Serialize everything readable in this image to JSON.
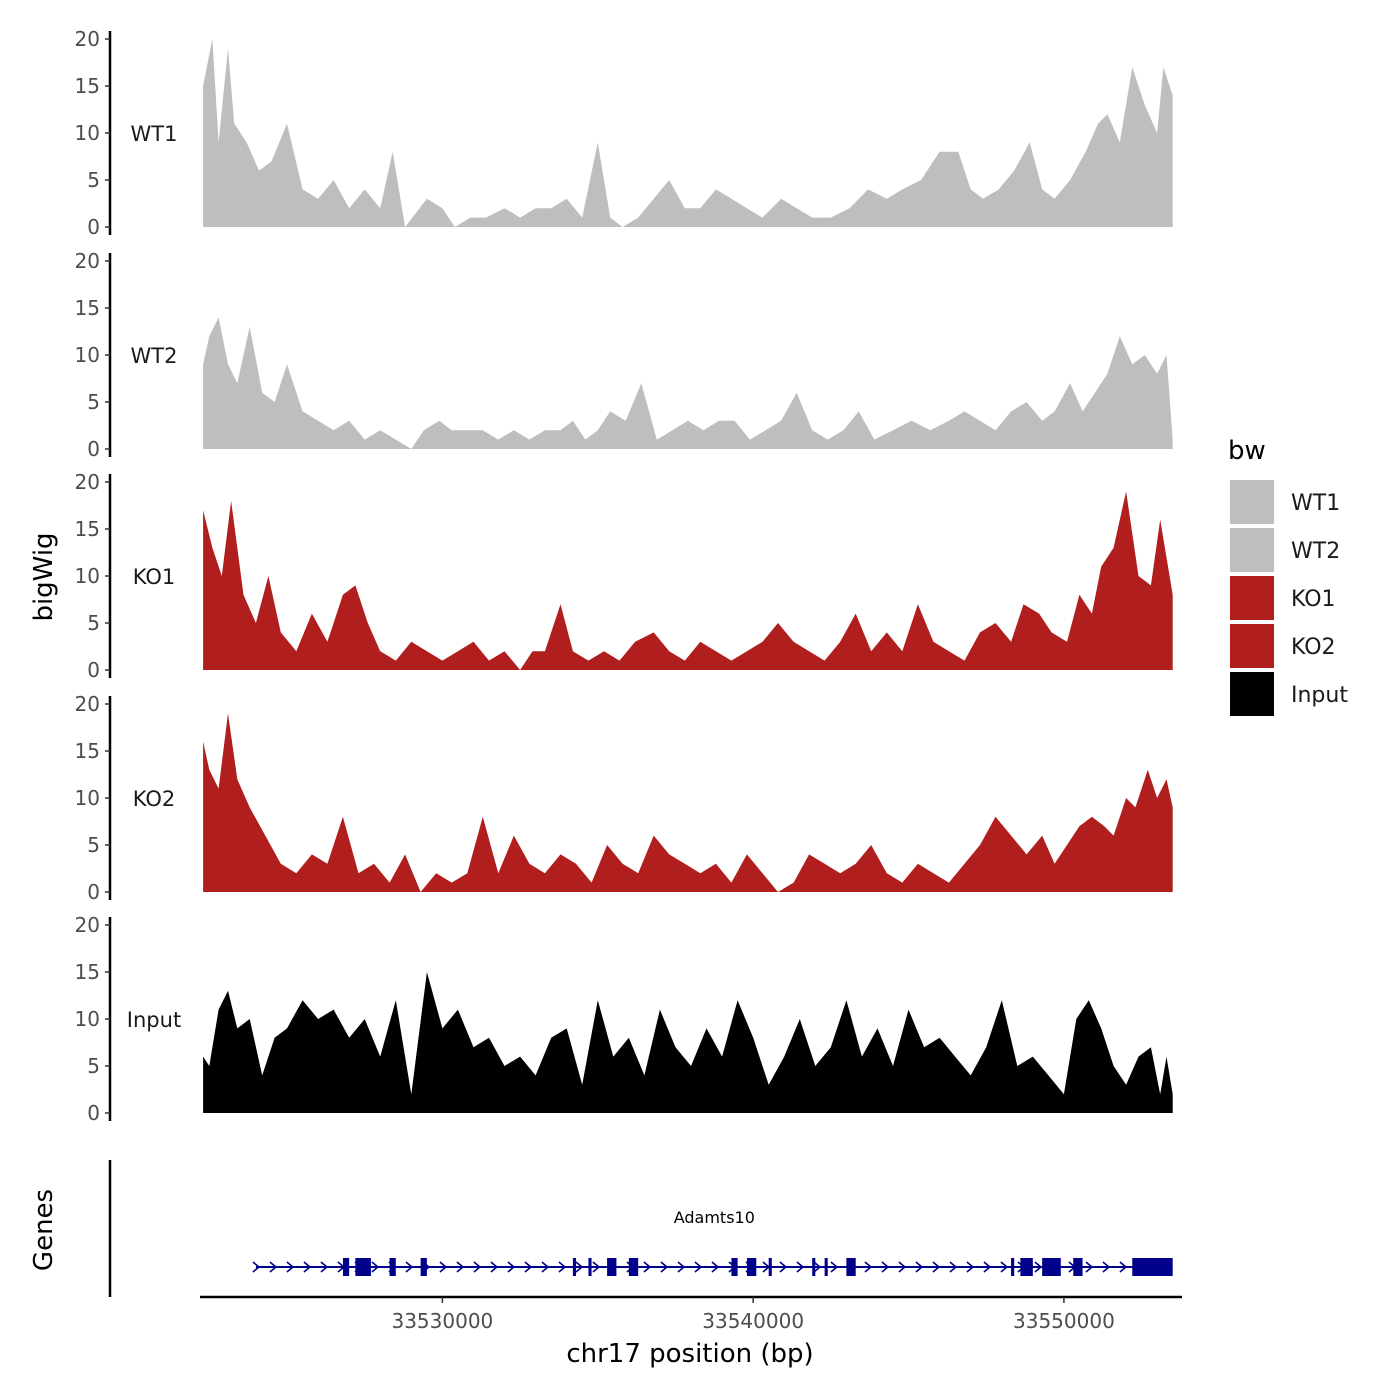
{
  "chart_data": {
    "type": "area",
    "x_units": "bp",
    "chromosome": "chr17",
    "xlabel": "chr17 position (bp)",
    "xlim": [
      33522200,
      33553800
    ],
    "xticks": [
      33530000,
      33540000,
      33550000
    ],
    "xtick_labels": [
      "33530000",
      "33540000",
      "33550000"
    ],
    "ylabel": "bigWig",
    "ylim": [
      0,
      20
    ],
    "yticks": [
      0,
      5,
      10,
      15,
      20
    ],
    "ytick_labels": [
      "0",
      "5",
      "10",
      "15",
      "20"
    ],
    "legend": {
      "title": "bw",
      "position": "right"
    },
    "series": [
      {
        "name": "WT1",
        "color": "#bebebe",
        "x": [
          33522300,
          33522600,
          33522800,
          33523100,
          33523300,
          33523700,
          33524100,
          33524500,
          33525000,
          33525500,
          33526000,
          33526500,
          33527000,
          33527500,
          33528000,
          33528400,
          33528800,
          33529500,
          33530000,
          33530400,
          33530900,
          33531400,
          33532000,
          33532500,
          33533000,
          33533500,
          33534000,
          33534500,
          33535000,
          33535400,
          33535800,
          33536300,
          33536800,
          33537300,
          33537800,
          33538300,
          33538800,
          33539300,
          33539800,
          33540300,
          33540900,
          33541400,
          33541900,
          33542500,
          33543100,
          33543700,
          33544300,
          33544800,
          33545400,
          33546000,
          33546600,
          33547000,
          33547400,
          33547900,
          33548400,
          33548900,
          33549300,
          33549700,
          33550200,
          33550700,
          33551100,
          33551400,
          33551800,
          33552200,
          33552600,
          33553000,
          33553200,
          33553500
        ],
        "values": [
          15,
          20,
          9,
          19,
          11,
          9,
          6,
          7,
          11,
          4,
          3,
          5,
          2,
          4,
          2,
          8,
          0,
          3,
          2,
          0,
          1,
          1,
          2,
          1,
          2,
          2,
          3,
          1,
          9,
          1,
          0,
          1,
          3,
          5,
          2,
          2,
          4,
          3,
          2,
          1,
          3,
          2,
          1,
          1,
          2,
          4,
          3,
          4,
          5,
          8,
          8,
          4,
          3,
          4,
          6,
          9,
          4,
          3,
          5,
          8,
          11,
          12,
          9,
          17,
          13,
          10,
          17,
          14
        ]
      },
      {
        "name": "WT2",
        "color": "#bebebe",
        "x": [
          33522300,
          33522500,
          33522800,
          33523100,
          33523400,
          33523800,
          33524200,
          33524600,
          33525000,
          33525500,
          33526000,
          33526500,
          33527000,
          33527500,
          33528000,
          33528500,
          33529000,
          33529400,
          33529900,
          33530300,
          33530800,
          33531300,
          33531800,
          33532300,
          33532800,
          33533300,
          33533800,
          33534200,
          33534600,
          33535000,
          33535400,
          33535900,
          33536400,
          33536900,
          33537400,
          33537900,
          33538400,
          33538900,
          33539400,
          33539900,
          33540400,
          33540900,
          33541400,
          33541900,
          33542400,
          33542900,
          33543400,
          33543900,
          33544500,
          33545100,
          33545700,
          33546300,
          33546800,
          33547300,
          33547800,
          33548300,
          33548800,
          33549300,
          33549700,
          33550200,
          33550600,
          33551000,
          33551400,
          33551800,
          33552200,
          33552600,
          33553000,
          33553300,
          33553500
        ],
        "values": [
          9,
          12,
          14,
          9,
          7,
          13,
          6,
          5,
          9,
          4,
          3,
          2,
          3,
          1,
          2,
          1,
          0,
          2,
          3,
          2,
          2,
          2,
          1,
          2,
          1,
          2,
          2,
          3,
          1,
          2,
          4,
          3,
          7,
          1,
          2,
          3,
          2,
          3,
          3,
          1,
          2,
          3,
          6,
          2,
          1,
          2,
          4,
          1,
          2,
          3,
          2,
          3,
          4,
          3,
          2,
          4,
          5,
          3,
          4,
          7,
          4,
          6,
          8,
          12,
          9,
          10,
          8,
          10,
          1
        ]
      },
      {
        "name": "KO1",
        "color": "#b11e1e",
        "x": [
          33522300,
          33522600,
          33522900,
          33523200,
          33523600,
          33524000,
          33524400,
          33524800,
          33525300,
          33525800,
          33526300,
          33526800,
          33527200,
          33527600,
          33528000,
          33528500,
          33529000,
          33529500,
          33530000,
          33530500,
          33531000,
          33531500,
          33532000,
          33532500,
          33532900,
          33533300,
          33533800,
          33534200,
          33534700,
          33535200,
          33535700,
          33536200,
          33536800,
          33537300,
          33537800,
          33538300,
          33538800,
          33539300,
          33539800,
          33540300,
          33540800,
          33541300,
          33541800,
          33542300,
          33542800,
          33543300,
          33543800,
          33544300,
          33544800,
          33545300,
          33545800,
          33546300,
          33546800,
          33547300,
          33547800,
          33548300,
          33548700,
          33549200,
          33549600,
          33550100,
          33550500,
          33550900,
          33551200,
          33551600,
          33552000,
          33552400,
          33552800,
          33553100,
          33553500
        ],
        "values": [
          17,
          13,
          10,
          18,
          8,
          5,
          10,
          4,
          2,
          6,
          3,
          8,
          9,
          5,
          2,
          1,
          3,
          2,
          1,
          2,
          3,
          1,
          2,
          0,
          2,
          2,
          7,
          2,
          1,
          2,
          1,
          3,
          4,
          2,
          1,
          3,
          2,
          1,
          2,
          3,
          5,
          3,
          2,
          1,
          3,
          6,
          2,
          4,
          2,
          7,
          3,
          2,
          1,
          4,
          5,
          3,
          7,
          6,
          4,
          3,
          8,
          6,
          11,
          13,
          19,
          10,
          9,
          16,
          8
        ]
      },
      {
        "name": "KO2",
        "color": "#b11e1e",
        "x": [
          33522300,
          33522500,
          33522800,
          33523100,
          33523400,
          33523800,
          33524300,
          33524800,
          33525300,
          33525800,
          33526300,
          33526800,
          33527300,
          33527800,
          33528300,
          33528800,
          33529300,
          33529800,
          33530300,
          33530800,
          33531300,
          33531800,
          33532300,
          33532800,
          33533300,
          33533800,
          33534300,
          33534800,
          33535300,
          33535800,
          33536300,
          33536800,
          33537300,
          33537800,
          33538300,
          33538800,
          33539300,
          33539800,
          33540300,
          33540800,
          33541300,
          33541800,
          33542300,
          33542800,
          33543300,
          33543800,
          33544300,
          33544800,
          33545300,
          33545800,
          33546300,
          33546800,
          33547300,
          33547800,
          33548300,
          33548800,
          33549300,
          33549700,
          33550100,
          33550500,
          33550900,
          33551300,
          33551600,
          33552000,
          33552300,
          33552700,
          33553000,
          33553300,
          33553500
        ],
        "values": [
          16,
          13,
          11,
          19,
          12,
          9,
          6,
          3,
          2,
          4,
          3,
          8,
          2,
          3,
          1,
          4,
          0,
          2,
          1,
          2,
          8,
          2,
          6,
          3,
          2,
          4,
          3,
          1,
          5,
          3,
          2,
          6,
          4,
          3,
          2,
          3,
          1,
          4,
          2,
          0,
          1,
          4,
          3,
          2,
          3,
          5,
          2,
          1,
          3,
          2,
          1,
          3,
          5,
          8,
          6,
          4,
          6,
          3,
          5,
          7,
          8,
          7,
          6,
          10,
          9,
          13,
          10,
          12,
          9
        ]
      },
      {
        "name": "Input",
        "color": "#000000",
        "x": [
          33522300,
          33522500,
          33522800,
          33523100,
          33523400,
          33523800,
          33524200,
          33524600,
          33525000,
          33525500,
          33526000,
          33526500,
          33527000,
          33527500,
          33528000,
          33528500,
          33529000,
          33529500,
          33530000,
          33530500,
          33531000,
          33531500,
          33532000,
          33532500,
          33533000,
          33533500,
          33534000,
          33534500,
          33535000,
          33535500,
          33536000,
          33536500,
          33537000,
          33537500,
          33538000,
          33538500,
          33539000,
          33539500,
          33540000,
          33540500,
          33541000,
          33541500,
          33542000,
          33542500,
          33543000,
          33543500,
          33544000,
          33544500,
          33545000,
          33545500,
          33546000,
          33546500,
          33547000,
          33547500,
          33548000,
          33548500,
          33549000,
          33549500,
          33550000,
          33550400,
          33550800,
          33551200,
          33551600,
          33552000,
          33552400,
          33552800,
          33553100,
          33553300,
          33553500
        ],
        "values": [
          6,
          5,
          11,
          13,
          9,
          10,
          4,
          8,
          9,
          12,
          10,
          11,
          8,
          10,
          6,
          12,
          2,
          15,
          9,
          11,
          7,
          8,
          5,
          6,
          4,
          8,
          9,
          3,
          12,
          6,
          8,
          4,
          11,
          7,
          5,
          9,
          6,
          12,
          8,
          3,
          6,
          10,
          5,
          7,
          12,
          6,
          9,
          5,
          11,
          7,
          8,
          6,
          4,
          7,
          12,
          5,
          6,
          4,
          2,
          10,
          12,
          9,
          5,
          3,
          6,
          7,
          2,
          6,
          2
        ]
      }
    ],
    "gene_track": {
      "ylabel": "Genes",
      "color": "#00008b",
      "genes": [
        {
          "name": "Adamts10",
          "strand": "+",
          "start": 33524000,
          "end": 33553500,
          "exons": [
            [
              33526800,
              33527000
            ],
            [
              33527200,
              33527700
            ],
            [
              33528300,
              33528500
            ],
            [
              33529300,
              33529500
            ],
            [
              33534200,
              33534300
            ],
            [
              33534700,
              33534800
            ],
            [
              33535300,
              33535600
            ],
            [
              33536000,
              33536300
            ],
            [
              33539300,
              33539500
            ],
            [
              33539800,
              33540100
            ],
            [
              33540500,
              33540600
            ],
            [
              33541900,
              33542000
            ],
            [
              33542300,
              33542400
            ],
            [
              33543000,
              33543300
            ],
            [
              33548300,
              33548400
            ],
            [
              33548600,
              33549000
            ],
            [
              33549300,
              33549900
            ],
            [
              33550300,
              33550600
            ],
            [
              33552200,
              33553500
            ]
          ]
        }
      ]
    }
  }
}
